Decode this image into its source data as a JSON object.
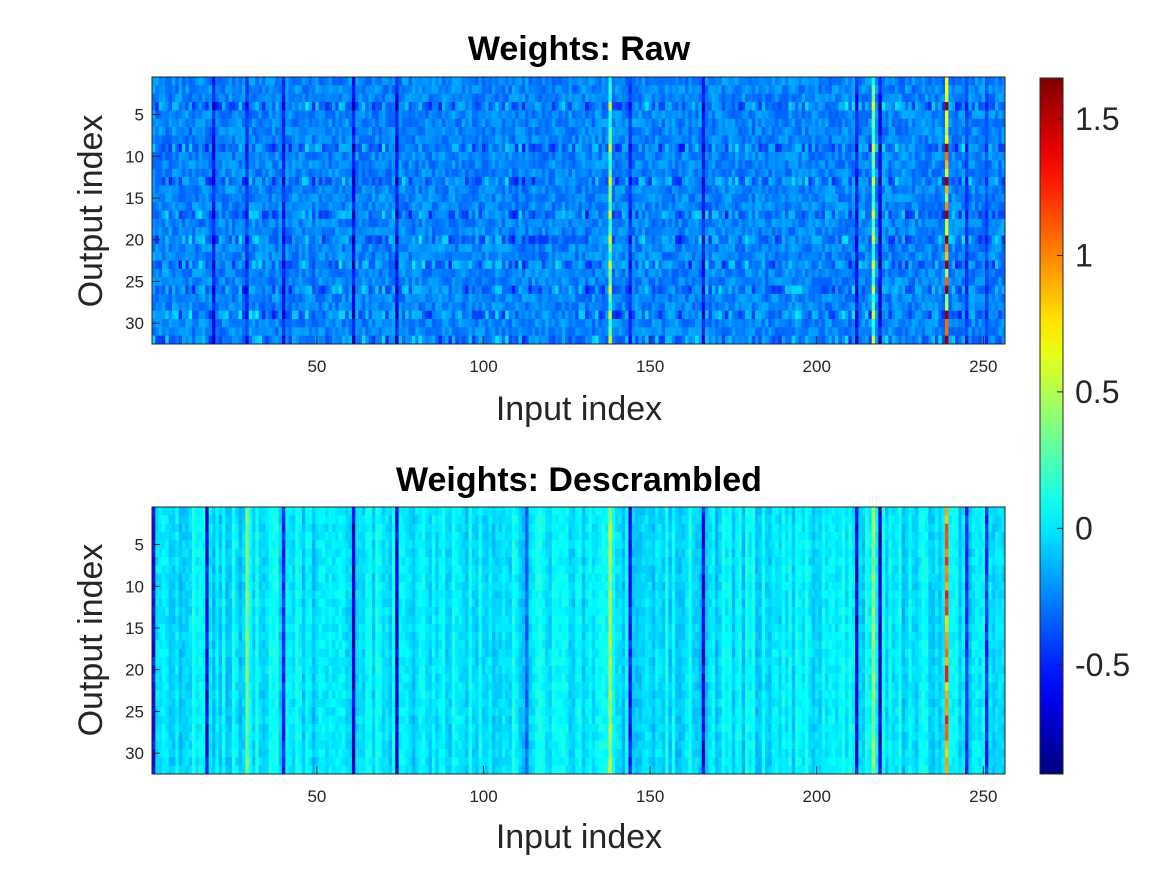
{
  "chart_data": [
    {
      "type": "heatmap",
      "title": "Weights: Raw",
      "xlabel": "Input index",
      "ylabel": "Output index",
      "xlim": [
        1,
        256
      ],
      "ylim": [
        1,
        32
      ],
      "x_ticks": [
        50,
        100,
        150,
        200,
        250
      ],
      "y_ticks": [
        5,
        10,
        15,
        20,
        25,
        30
      ],
      "rows": 32,
      "cols": 256,
      "baseline_value": -0.25,
      "row_highlight_indices": [
        4,
        9,
        13,
        17,
        20,
        23,
        26,
        29,
        32
      ],
      "strong_columns": [
        {
          "x": 19,
          "v": -0.7
        },
        {
          "x": 29,
          "v": -0.6
        },
        {
          "x": 40,
          "v": -0.65
        },
        {
          "x": 61,
          "v": -0.8
        },
        {
          "x": 74,
          "v": -0.75
        },
        {
          "x": 138,
          "v": 0.6
        },
        {
          "x": 144,
          "v": -0.6
        },
        {
          "x": 166,
          "v": -0.7
        },
        {
          "x": 212,
          "v": -0.7
        },
        {
          "x": 217,
          "v": 0.6
        },
        {
          "x": 219,
          "v": -0.85
        },
        {
          "x": 239,
          "v": 1.6
        },
        {
          "x": 245,
          "v": -0.55
        },
        {
          "x": 251,
          "v": -0.5
        }
      ]
    },
    {
      "type": "heatmap",
      "title": "Weights: Descrambled",
      "xlabel": "Input index",
      "ylabel": "Output index",
      "xlim": [
        1,
        256
      ],
      "ylim": [
        1,
        32
      ],
      "x_ticks": [
        50,
        100,
        150,
        200,
        250
      ],
      "y_ticks": [
        5,
        10,
        15,
        20,
        25,
        30
      ],
      "rows": 32,
      "cols": 256,
      "baseline_value": 0.0,
      "strong_columns": [
        {
          "x": 1,
          "v": -0.7
        },
        {
          "x": 17,
          "v": -0.75
        },
        {
          "x": 29,
          "v": 0.45
        },
        {
          "x": 40,
          "v": -0.6
        },
        {
          "x": 61,
          "v": -0.85
        },
        {
          "x": 74,
          "v": -0.8
        },
        {
          "x": 113,
          "v": -0.4
        },
        {
          "x": 138,
          "v": 0.6
        },
        {
          "x": 144,
          "v": -0.7
        },
        {
          "x": 166,
          "v": -0.75
        },
        {
          "x": 212,
          "v": -0.8
        },
        {
          "x": 217,
          "v": 0.55
        },
        {
          "x": 219,
          "v": -0.9
        },
        {
          "x": 239,
          "v": 1.3
        },
        {
          "x": 245,
          "v": -0.6
        },
        {
          "x": 251,
          "v": -0.6
        }
      ]
    }
  ],
  "colorbar": {
    "colormap": "jet",
    "clim": [
      -0.9,
      1.65
    ],
    "ticks": [
      -0.5,
      0,
      0.5,
      1,
      1.5
    ],
    "tick_labels": [
      "-0.5",
      "0",
      "0.5",
      "1",
      "1.5"
    ]
  }
}
